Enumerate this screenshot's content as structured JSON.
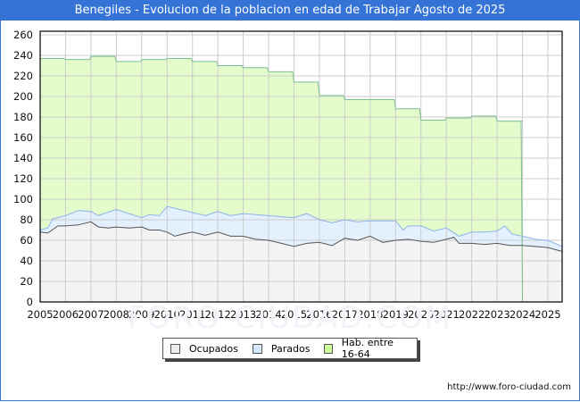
{
  "header": {
    "title": "Benegiles - Evolucion de la poblacion en edad de Trabajar Agosto de 2025"
  },
  "footer": {
    "url": "http://www.foro-ciudad.com"
  },
  "watermark": "FORO-CIUDAD.COM",
  "legend": [
    {
      "label": "Ocupados",
      "color": "#f0f0f0"
    },
    {
      "label": "Parados",
      "color": "#ddeeff"
    },
    {
      "label": "Hab. entre 16-64",
      "color": "#ccff99"
    }
  ],
  "colors": {
    "title_bar": "#3573d6",
    "hab_fill": "#e4fbcc",
    "hab_line": "#7cbf8f",
    "parados_fill": "#e3f0fd",
    "parados_line": "#8eb3e8",
    "ocupados_fill": "#f4f4f4",
    "ocupados_line": "#555555",
    "grid": "#cccccc"
  },
  "chart_data": {
    "type": "area",
    "title": "Benegiles - Evolucion de la poblacion en edad de Trabajar Agosto de 2025",
    "xlabel": "",
    "ylabel": "",
    "ylim": [
      0,
      260
    ],
    "xlim": [
      2005,
      2025.58
    ],
    "grid": true,
    "legend_position": "bottom",
    "y_ticks": [
      0,
      20,
      40,
      60,
      80,
      100,
      120,
      140,
      160,
      180,
      200,
      220,
      240,
      260
    ],
    "x_ticks": [
      "2005",
      "2006",
      "2007",
      "2008",
      "2009",
      "2010",
      "2011",
      "2012",
      "2013",
      "2014",
      "2015",
      "2016",
      "2017",
      "2018",
      "2019",
      "2020",
      "2021",
      "2022",
      "2023",
      "2024",
      "2025"
    ],
    "series": [
      {
        "name": "Hab. entre 16-64",
        "kind": "step",
        "x": [
          2005,
          2006,
          2007,
          2008,
          2009,
          2010,
          2011,
          2012,
          2013,
          2014,
          2015,
          2016,
          2017,
          2018,
          2019,
          2020,
          2021,
          2022,
          2023,
          2024
        ],
        "values": [
          237,
          236,
          239,
          234,
          236,
          237,
          234,
          230,
          228,
          224,
          214,
          201,
          197,
          197,
          188,
          177,
          179,
          181,
          176,
          176
        ]
      },
      {
        "name": "Parados",
        "kind": "line_total",
        "x": [
          2005.0,
          2005.3,
          2005.5,
          2006.0,
          2006.5,
          2007.0,
          2007.3,
          2007.5,
          2008.0,
          2008.5,
          2009.0,
          2009.3,
          2009.7,
          2010.0,
          2010.5,
          2011.0,
          2011.5,
          2012.0,
          2012.5,
          2013.0,
          2013.5,
          2014.0,
          2014.5,
          2015.0,
          2015.5,
          2016.0,
          2016.5,
          2017.0,
          2017.5,
          2018.0,
          2018.5,
          2019.0,
          2019.3,
          2019.5,
          2020.0,
          2020.5,
          2021.0,
          2021.5,
          2022.0,
          2022.5,
          2023.0,
          2023.3,
          2023.6,
          2024.0,
          2024.5,
          2025.0,
          2025.58
        ],
        "values": [
          70,
          72,
          81,
          84,
          89,
          88,
          84,
          86,
          90,
          86,
          82,
          85,
          84,
          93,
          90,
          87,
          84,
          88,
          84,
          86,
          85,
          84,
          83,
          82,
          86,
          80,
          77,
          80,
          78,
          79,
          79,
          79,
          70,
          74,
          74,
          69,
          72,
          64,
          68,
          68,
          69,
          74,
          66,
          64,
          61,
          60,
          54
        ]
      },
      {
        "name": "Ocupados",
        "kind": "line",
        "x": [
          2005.0,
          2005.3,
          2005.7,
          2006.0,
          2006.5,
          2007.0,
          2007.3,
          2007.7,
          2008.0,
          2008.5,
          2009.0,
          2009.3,
          2009.7,
          2010.0,
          2010.3,
          2010.6,
          2011.0,
          2011.5,
          2012.0,
          2012.5,
          2013.0,
          2013.5,
          2014.0,
          2014.5,
          2015.0,
          2015.5,
          2016.0,
          2016.5,
          2017.0,
          2017.5,
          2018.0,
          2018.5,
          2019.0,
          2019.5,
          2020.0,
          2020.5,
          2021.0,
          2021.3,
          2021.5,
          2022.0,
          2022.5,
          2023.0,
          2023.5,
          2024.0,
          2024.5,
          2025.0,
          2025.58
        ],
        "values": [
          68,
          67,
          74,
          74,
          75,
          78,
          73,
          72,
          73,
          72,
          73,
          70,
          70,
          68,
          64,
          66,
          68,
          65,
          68,
          64,
          64,
          61,
          60,
          57,
          54,
          57,
          58,
          55,
          62,
          60,
          64,
          58,
          60,
          61,
          59,
          58,
          61,
          63,
          57,
          57,
          56,
          57,
          55,
          55,
          54,
          53,
          49
        ]
      }
    ]
  }
}
